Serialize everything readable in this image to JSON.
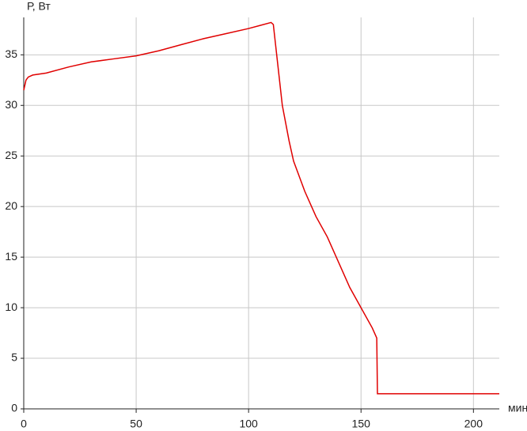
{
  "chart_data": {
    "type": "line",
    "x_label": "мин",
    "y_label": "Р, Вт",
    "x": [
      0,
      1,
      2,
      4,
      10,
      20,
      30,
      40,
      50,
      60,
      70,
      80,
      90,
      100,
      105,
      110,
      111,
      112,
      113,
      115,
      118,
      120,
      125,
      130,
      135,
      140,
      145,
      150,
      155,
      157,
      157.3,
      211.5
    ],
    "series": [
      {
        "color": "#e00000",
        "values": [
          31.5,
          32.5,
          32.8,
          33,
          33.2,
          33.8,
          34.3,
          34.6,
          34.9,
          35.4,
          36,
          36.6,
          37.1,
          37.6,
          37.9,
          38.2,
          38,
          36,
          34,
          30,
          26.5,
          24.5,
          21.5,
          19,
          17,
          14.5,
          12,
          10,
          8,
          7,
          1.5,
          1.5
        ]
      }
    ],
    "xlim": [
      0,
      211.5
    ],
    "ylim": [
      0,
      38.7
    ],
    "xticks": [
      0,
      50,
      100,
      150,
      200
    ],
    "yticks": [
      0,
      5,
      10,
      15,
      20,
      25,
      30,
      35
    ],
    "grid": true
  }
}
